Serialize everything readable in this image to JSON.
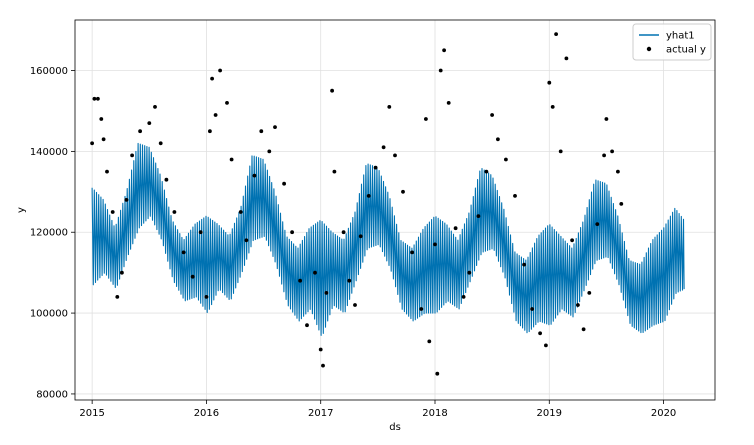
{
  "chart_data": {
    "type": "line",
    "title": "",
    "xlabel": "ds",
    "ylabel": "y",
    "xlim": [
      2014.85,
      2020.45
    ],
    "ylim": [
      78500,
      172500
    ],
    "x_ticks": [
      2015,
      2016,
      2017,
      2018,
      2019,
      2020
    ],
    "x_tick_labels": [
      "2015",
      "2016",
      "2017",
      "2018",
      "2019",
      "2020"
    ],
    "y_ticks": [
      80000,
      100000,
      120000,
      140000,
      160000
    ],
    "y_tick_labels": [
      "80000",
      "100000",
      "120000",
      "140000",
      "160000"
    ],
    "grid": true,
    "legend_position": "top-right",
    "colors": {
      "forecast": "#0072B2",
      "actual": "#000000"
    },
    "series": [
      {
        "name": "yhat1",
        "kind": "line",
        "x": [
          2015.0,
          2015.1,
          2015.2,
          2015.3,
          2015.4,
          2015.5,
          2015.6,
          2015.7,
          2015.8,
          2015.9,
          2016.0,
          2016.1,
          2016.2,
          2016.3,
          2016.4,
          2016.5,
          2016.6,
          2016.7,
          2016.8,
          2016.9,
          2017.0,
          2017.1,
          2017.2,
          2017.3,
          2017.4,
          2017.5,
          2017.6,
          2017.7,
          2017.8,
          2017.9,
          2018.0,
          2018.1,
          2018.2,
          2018.3,
          2018.4,
          2018.5,
          2018.6,
          2018.7,
          2018.8,
          2018.9,
          2019.0,
          2019.1,
          2019.2,
          2019.3,
          2019.4,
          2019.5,
          2019.6,
          2019.7,
          2019.8,
          2019.9,
          2020.0,
          2020.1,
          2020.18
        ],
        "upper": [
          131000,
          128000,
          121000,
          130000,
          142000,
          141000,
          134000,
          123000,
          118000,
          122000,
          124000,
          122000,
          119000,
          126000,
          139000,
          138000,
          130000,
          119000,
          116000,
          121000,
          123000,
          120000,
          118000,
          125000,
          137000,
          136000,
          129000,
          118000,
          116000,
          121000,
          124000,
          122000,
          118000,
          125000,
          136000,
          134000,
          126000,
          115000,
          113000,
          119000,
          122000,
          119000,
          116000,
          123000,
          133000,
          132000,
          124000,
          113000,
          112000,
          118000,
          121000,
          126000,
          123000
        ],
        "lower": [
          107000,
          110000,
          106000,
          114000,
          121000,
          124000,
          118000,
          108000,
          103000,
          104000,
          100000,
          106000,
          103000,
          110000,
          118000,
          119000,
          112000,
          102000,
          98000,
          101000,
          94000,
          102000,
          100000,
          108000,
          116000,
          117000,
          111000,
          101000,
          98000,
          100000,
          100000,
          103000,
          101000,
          108000,
          115000,
          116000,
          109000,
          98000,
          95000,
          98000,
          97000,
          101000,
          99000,
          106000,
          113000,
          114000,
          107000,
          97000,
          95000,
          97000,
          98000,
          105000,
          106000
        ]
      },
      {
        "name": "actual y",
        "kind": "scatter",
        "points": [
          [
            2015.0,
            142000
          ],
          [
            2015.02,
            153000
          ],
          [
            2015.05,
            153000
          ],
          [
            2015.08,
            148000
          ],
          [
            2015.1,
            143000
          ],
          [
            2015.13,
            135000
          ],
          [
            2015.18,
            125000
          ],
          [
            2015.22,
            104000
          ],
          [
            2015.26,
            110000
          ],
          [
            2015.3,
            128000
          ],
          [
            2015.35,
            139000
          ],
          [
            2015.42,
            145000
          ],
          [
            2015.5,
            147000
          ],
          [
            2015.55,
            151000
          ],
          [
            2015.6,
            142000
          ],
          [
            2015.65,
            133000
          ],
          [
            2015.72,
            125000
          ],
          [
            2015.8,
            115000
          ],
          [
            2015.88,
            109000
          ],
          [
            2015.95,
            120000
          ],
          [
            2016.0,
            104000
          ],
          [
            2016.03,
            145000
          ],
          [
            2016.05,
            158000
          ],
          [
            2016.08,
            149000
          ],
          [
            2016.12,
            160000
          ],
          [
            2016.18,
            152000
          ],
          [
            2016.22,
            138000
          ],
          [
            2016.3,
            125000
          ],
          [
            2016.35,
            118000
          ],
          [
            2016.42,
            134000
          ],
          [
            2016.48,
            145000
          ],
          [
            2016.55,
            140000
          ],
          [
            2016.6,
            146000
          ],
          [
            2016.68,
            132000
          ],
          [
            2016.75,
            120000
          ],
          [
            2016.82,
            108000
          ],
          [
            2016.88,
            97000
          ],
          [
            2016.95,
            110000
          ],
          [
            2017.0,
            91000
          ],
          [
            2017.02,
            87000
          ],
          [
            2017.05,
            105000
          ],
          [
            2017.1,
            155000
          ],
          [
            2017.12,
            135000
          ],
          [
            2017.2,
            120000
          ],
          [
            2017.25,
            108000
          ],
          [
            2017.3,
            102000
          ],
          [
            2017.35,
            119000
          ],
          [
            2017.42,
            129000
          ],
          [
            2017.48,
            136000
          ],
          [
            2017.55,
            141000
          ],
          [
            2017.6,
            151000
          ],
          [
            2017.65,
            139000
          ],
          [
            2017.72,
            130000
          ],
          [
            2017.8,
            115000
          ],
          [
            2017.88,
            101000
          ],
          [
            2017.92,
            148000
          ],
          [
            2017.95,
            93000
          ],
          [
            2018.0,
            117000
          ],
          [
            2018.02,
            85000
          ],
          [
            2018.05,
            160000
          ],
          [
            2018.08,
            165000
          ],
          [
            2018.12,
            152000
          ],
          [
            2018.18,
            121000
          ],
          [
            2018.25,
            104000
          ],
          [
            2018.3,
            110000
          ],
          [
            2018.38,
            124000
          ],
          [
            2018.45,
            135000
          ],
          [
            2018.5,
            149000
          ],
          [
            2018.55,
            143000
          ],
          [
            2018.62,
            138000
          ],
          [
            2018.7,
            129000
          ],
          [
            2018.78,
            112000
          ],
          [
            2018.85,
            101000
          ],
          [
            2018.92,
            95000
          ],
          [
            2018.97,
            92000
          ],
          [
            2019.0,
            157000
          ],
          [
            2019.03,
            151000
          ],
          [
            2019.06,
            169000
          ],
          [
            2019.1,
            140000
          ],
          [
            2019.15,
            163000
          ],
          [
            2019.2,
            118000
          ],
          [
            2019.25,
            102000
          ],
          [
            2019.3,
            96000
          ],
          [
            2019.35,
            105000
          ],
          [
            2019.42,
            122000
          ],
          [
            2019.48,
            139000
          ],
          [
            2019.5,
            148000
          ],
          [
            2019.55,
            140000
          ],
          [
            2019.6,
            135000
          ],
          [
            2019.63,
            127000
          ]
        ]
      }
    ]
  }
}
